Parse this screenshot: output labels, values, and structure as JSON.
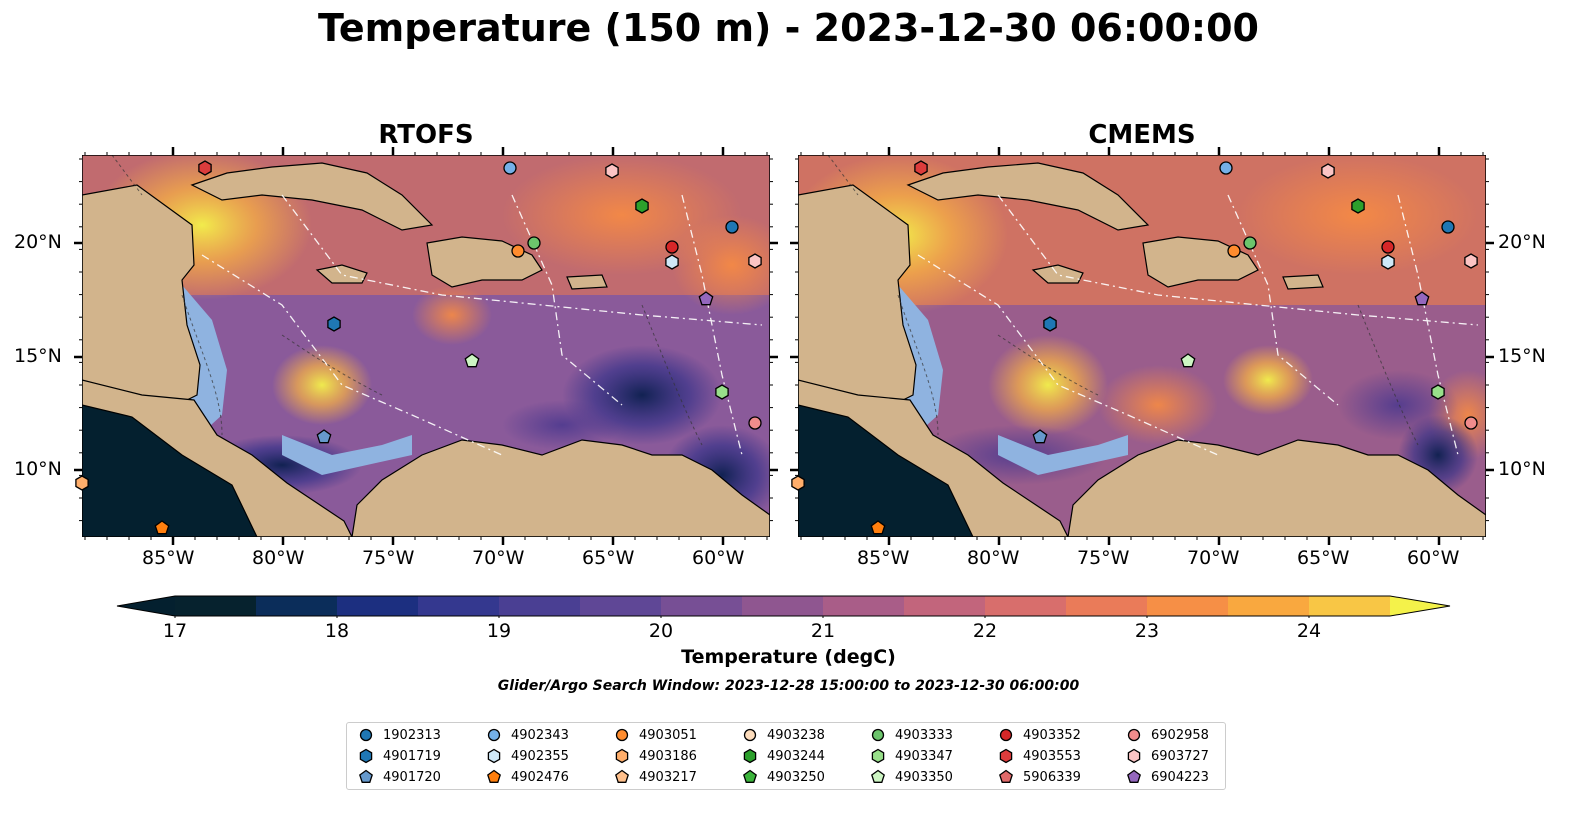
{
  "title": "Temperature (150 m) - 2023-12-30 06:00:00",
  "panels": [
    {
      "title": "RTOFS"
    },
    {
      "title": "CMEMS"
    }
  ],
  "lon_ticks": [
    "85°W",
    "80°W",
    "75°W",
    "70°W",
    "65°W",
    "60°W"
  ],
  "lat_ticks": [
    "20°N",
    "15°N",
    "10°N"
  ],
  "colorbar": {
    "label": "Temperature (degC)",
    "min": 17,
    "max": 24.5,
    "step": 0.5,
    "ticks": [
      "17",
      "18",
      "19",
      "20",
      "21",
      "22",
      "23",
      "24"
    ],
    "extend": "both"
  },
  "search_window": "Glider/Argo Search Window: 2023-12-28 15:00:00 to 2023-12-30 06:00:00",
  "legend": [
    {
      "label": "1902313",
      "color": "#1f77b4",
      "marker": "circle"
    },
    {
      "label": "4901719",
      "color": "#1f77b4",
      "marker": "hexagon"
    },
    {
      "label": "4901720",
      "color": "#6699cc",
      "marker": "pentagon"
    },
    {
      "label": "4902343",
      "color": "#74b0e8",
      "marker": "circle"
    },
    {
      "label": "4902355",
      "color": "#cfe8f7",
      "marker": "hexagon"
    },
    {
      "label": "4902476",
      "color": "#ff7f0e",
      "marker": "pentagon"
    },
    {
      "label": "4903051",
      "color": "#ff8c2e",
      "marker": "circle"
    },
    {
      "label": "4903186",
      "color": "#ffae6b",
      "marker": "hexagon"
    },
    {
      "label": "4903217",
      "color": "#ffc08c",
      "marker": "pentagon"
    },
    {
      "label": "4903238",
      "color": "#fddcbc",
      "marker": "circle"
    },
    {
      "label": "4903244",
      "color": "#2ca02c",
      "marker": "hexagon"
    },
    {
      "label": "4903250",
      "color": "#3cb43c",
      "marker": "pentagon"
    },
    {
      "label": "4903333",
      "color": "#6cc46c",
      "marker": "circle"
    },
    {
      "label": "4903347",
      "color": "#98df8a",
      "marker": "hexagon"
    },
    {
      "label": "4903350",
      "color": "#cdf5c3",
      "marker": "pentagon"
    },
    {
      "label": "4903352",
      "color": "#d62728",
      "marker": "circle"
    },
    {
      "label": "4903553",
      "color": "#dc3c3c",
      "marker": "hexagon"
    },
    {
      "label": "5906339",
      "color": "#e06a6a",
      "marker": "pentagon"
    },
    {
      "label": "6902958",
      "color": "#f08c8c",
      "marker": "circle"
    },
    {
      "label": "6903727",
      "color": "#fbc4c4",
      "marker": "hexagon"
    },
    {
      "label": "6904223",
      "color": "#9467bd",
      "marker": "pentagon"
    }
  ],
  "colors": {
    "land": "#d2b48c",
    "shelf": "#8fb3e0",
    "ocean_low": "#04202f",
    "ocean_high": "#f4f24a"
  }
}
